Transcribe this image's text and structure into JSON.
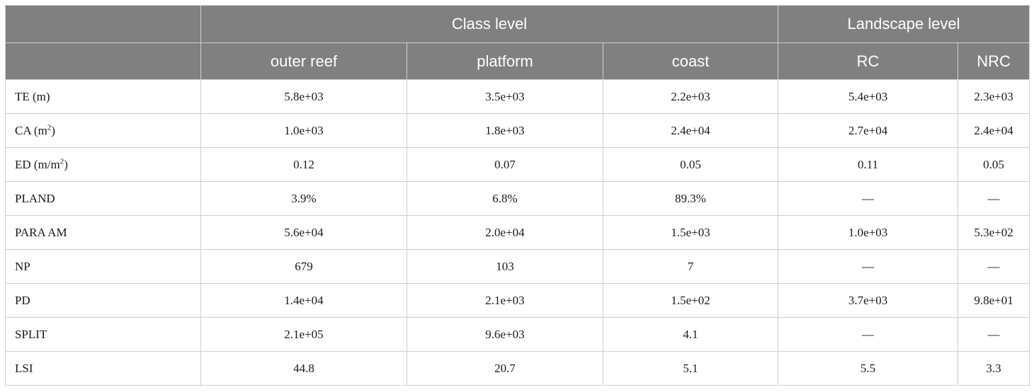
{
  "header": {
    "group_class": "Class level",
    "group_landscape": "Landscape level",
    "columns": [
      "outer reef",
      "platform",
      "coast",
      "RC",
      "NRC"
    ]
  },
  "rows": [
    {
      "metric": "TE (m)",
      "values": [
        "5.8e+03",
        "3.5e+03",
        "2.2e+03",
        "5.4e+03",
        "2.3e+03"
      ]
    },
    {
      "metric_base": "CA (m",
      "metric_sup": "2",
      "metric_tail": ")",
      "values": [
        "1.0e+03",
        "1.8e+03",
        "2.4e+04",
        "2.7e+04",
        "2.4e+04"
      ]
    },
    {
      "metric_base": "ED (m/m",
      "metric_sup": "2",
      "metric_tail": ")",
      "values": [
        "0.12",
        "0.07",
        "0.05",
        "0.11",
        "0.05"
      ]
    },
    {
      "metric": "PLAND",
      "values": [
        "3.9%",
        "6.8%",
        "89.3%",
        "—",
        "—"
      ]
    },
    {
      "metric": "PARA AM",
      "values": [
        "5.6e+04",
        "2.0e+04",
        "1.5e+03",
        "1.0e+03",
        "5.3e+02"
      ]
    },
    {
      "metric": "NP",
      "values": [
        "679",
        "103",
        "7",
        "—",
        "—"
      ]
    },
    {
      "metric": "PD",
      "values": [
        "1.4e+04",
        "2.1e+03",
        "1.5e+02",
        "3.7e+03",
        "9.8e+01"
      ]
    },
    {
      "metric": "SPLIT",
      "values": [
        "2.1e+05",
        "9.6e+03",
        "4.1",
        "—",
        "—"
      ]
    },
    {
      "metric": "LSI",
      "values": [
        "44.8",
        "20.7",
        "5.1",
        "5.5",
        "3.3"
      ]
    }
  ]
}
